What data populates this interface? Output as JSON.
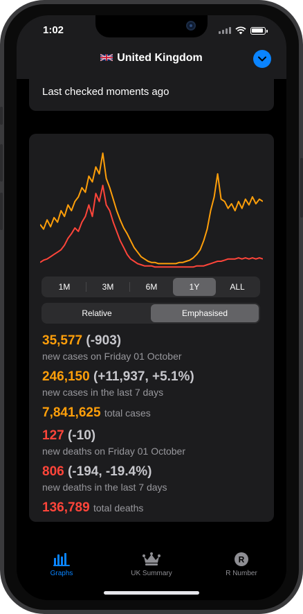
{
  "status_bar": {
    "time": "1:02"
  },
  "nav": {
    "title": "United Kingdom",
    "flag": "uk-flag-icon",
    "accent": "#0a84ff"
  },
  "last_checked": "Last checked moments ago",
  "range_selector": {
    "options": [
      "1M",
      "3M",
      "6M",
      "1Y",
      "ALL"
    ],
    "selected": "1Y"
  },
  "mode_selector": {
    "options": [
      "Relative",
      "Emphasised"
    ],
    "selected": "Emphasised"
  },
  "stats": {
    "cases_today": {
      "value": "35,577",
      "delta": "(-903)",
      "label": "new cases on Friday 01 October"
    },
    "cases_week": {
      "value": "246,150",
      "delta": "(+11,937, +5.1%)",
      "label": "new cases in the last 7 days"
    },
    "cases_total": {
      "value": "7,841,625",
      "label": "total cases"
    },
    "deaths_today": {
      "value": "127",
      "delta": "(-10)",
      "label": "new deaths on Friday 01 October"
    },
    "deaths_week": {
      "value": "806",
      "delta": "(-194, -19.4%)",
      "label": "new deaths in the last 7 days"
    },
    "deaths_total": {
      "value": "136,789",
      "label": "total deaths"
    }
  },
  "colors": {
    "cases": "#ff9f0a",
    "deaths": "#ff453a"
  },
  "tabs": [
    {
      "label": "Graphs",
      "icon": "bar-chart-icon",
      "active": true
    },
    {
      "label": "UK Summary",
      "icon": "crown-icon",
      "active": false
    },
    {
      "label": "R Number",
      "icon": "r-circle-icon",
      "active": false
    }
  ],
  "chart_data": {
    "type": "line",
    "title": "",
    "xlabel": "",
    "ylabel": "",
    "series": [
      {
        "color": "#ff9f0a",
        "values": [
          0.38,
          0.34,
          0.42,
          0.36,
          0.44,
          0.4,
          0.5,
          0.45,
          0.55,
          0.5,
          0.58,
          0.62,
          0.7,
          0.66,
          0.8,
          0.75,
          0.88,
          0.82,
          1.0,
          0.78,
          0.7,
          0.6,
          0.5,
          0.42,
          0.35,
          0.3,
          0.24,
          0.18,
          0.14,
          0.1,
          0.08,
          0.06,
          0.05,
          0.05,
          0.04,
          0.04,
          0.04,
          0.04,
          0.04,
          0.04,
          0.05,
          0.05,
          0.06,
          0.07,
          0.09,
          0.12,
          0.16,
          0.24,
          0.34,
          0.5,
          0.62,
          0.82,
          0.6,
          0.58,
          0.52,
          0.56,
          0.5,
          0.58,
          0.52,
          0.6,
          0.55,
          0.62,
          0.56,
          0.6,
          0.58
        ]
      },
      {
        "color": "#ff453a",
        "values": [
          0.05,
          0.07,
          0.08,
          0.1,
          0.12,
          0.14,
          0.16,
          0.2,
          0.26,
          0.3,
          0.35,
          0.32,
          0.4,
          0.45,
          0.55,
          0.45,
          0.65,
          0.58,
          0.72,
          0.55,
          0.5,
          0.4,
          0.32,
          0.24,
          0.18,
          0.12,
          0.08,
          0.06,
          0.04,
          0.03,
          0.02,
          0.02,
          0.02,
          0.01,
          0.01,
          0.01,
          0.01,
          0.01,
          0.01,
          0.01,
          0.01,
          0.01,
          0.01,
          0.01,
          0.01,
          0.02,
          0.02,
          0.02,
          0.03,
          0.04,
          0.05,
          0.06,
          0.06,
          0.07,
          0.08,
          0.08,
          0.08,
          0.09,
          0.08,
          0.09,
          0.08,
          0.09,
          0.08,
          0.09,
          0.08
        ]
      }
    ],
    "grid": false,
    "legend": "none"
  }
}
